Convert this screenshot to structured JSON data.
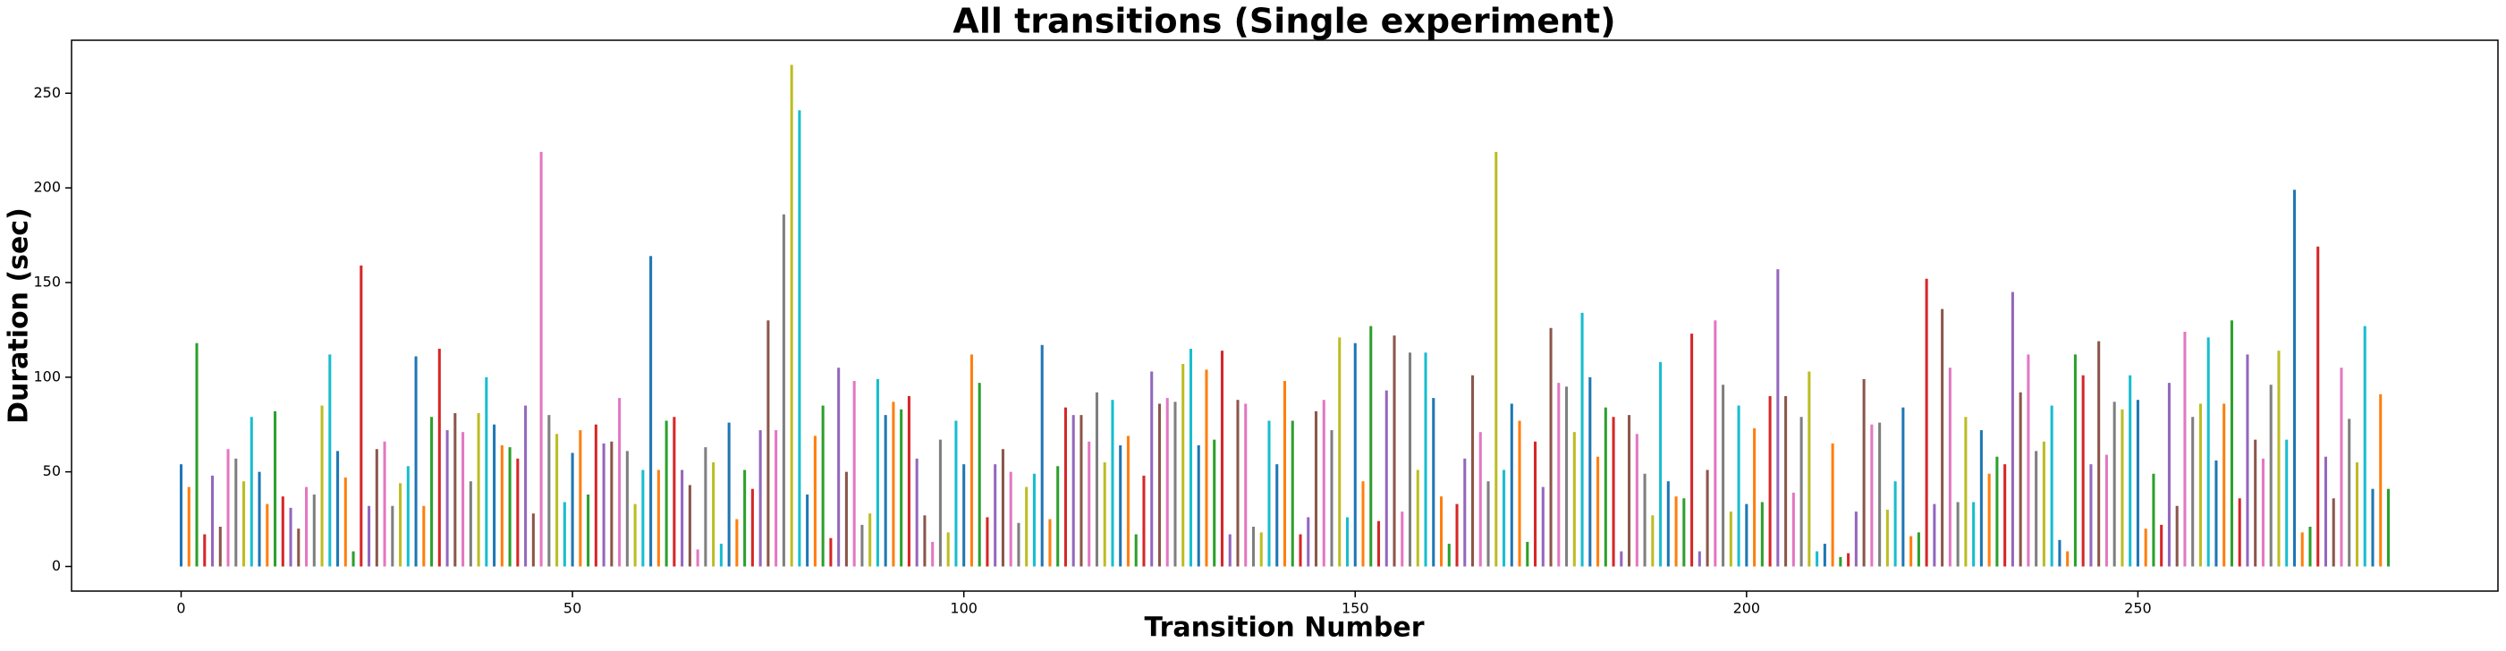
{
  "chart_data": {
    "type": "bar",
    "title": "All transitions (Single experiment)",
    "xlabel": "Transition Number",
    "ylabel": "Duration (sec)",
    "x": [
      0,
      1,
      2,
      3,
      4,
      5,
      6,
      7,
      8,
      9,
      10,
      11,
      12,
      13,
      14,
      15,
      16,
      17,
      18,
      19,
      20,
      21,
      22,
      23,
      24,
      25,
      26,
      27,
      28,
      29,
      30,
      31,
      32,
      33,
      34,
      35,
      36,
      37,
      38,
      39,
      40,
      41,
      42,
      43,
      44,
      45,
      46,
      47,
      48,
      49,
      50,
      51,
      52,
      53,
      54,
      55,
      56,
      57,
      58,
      59,
      60,
      61,
      62,
      63,
      64,
      65,
      66,
      67,
      68,
      69,
      70,
      71,
      72,
      73,
      74,
      75,
      76,
      77,
      78,
      79,
      80,
      81,
      82,
      83,
      84,
      85,
      86,
      87,
      88,
      89,
      90,
      91,
      92,
      93,
      94,
      95,
      96,
      97,
      98,
      99,
      100,
      101,
      102,
      103,
      104,
      105,
      106,
      107,
      108,
      109,
      110,
      111,
      112,
      113,
      114,
      115,
      116,
      117,
      118,
      119,
      120,
      121,
      122,
      123,
      124,
      125,
      126,
      127,
      128,
      129,
      130,
      131,
      132,
      133,
      134,
      135,
      136,
      137,
      138,
      139,
      140,
      141,
      142,
      143,
      144,
      145,
      146,
      147,
      148,
      149,
      150,
      151,
      152,
      153,
      154,
      155,
      156,
      157,
      158,
      159,
      160,
      161,
      162,
      163,
      164,
      165,
      166,
      167,
      168,
      169,
      170,
      171,
      172,
      173,
      174,
      175,
      176,
      177,
      178,
      179,
      180,
      181,
      182,
      183,
      184,
      185,
      186,
      187,
      188,
      189,
      190,
      191,
      192,
      193,
      194,
      195,
      196,
      197,
      198,
      199,
      200,
      201,
      202,
      203,
      204,
      205,
      206,
      207,
      208,
      209,
      210,
      211,
      212,
      213,
      214,
      215,
      216,
      217,
      218,
      219,
      220,
      221,
      222,
      223,
      224,
      225,
      226,
      227,
      228,
      229,
      230,
      231,
      232,
      233,
      234,
      235,
      236,
      237,
      238,
      239,
      240,
      241,
      242,
      243,
      244,
      245,
      246,
      247,
      248,
      249,
      250,
      251,
      252,
      253,
      254,
      255,
      256,
      257,
      258,
      259,
      260,
      261,
      262,
      263,
      264,
      265,
      266,
      267,
      268,
      269,
      270,
      271,
      272,
      273,
      274,
      275,
      276,
      277,
      278,
      279,
      280,
      281,
      282
    ],
    "values": [
      54,
      42,
      118,
      17,
      48,
      21,
      62,
      57,
      45,
      79,
      50,
      33,
      82,
      37,
      31,
      20,
      42,
      38,
      85,
      112,
      61,
      47,
      8,
      159,
      32,
      62,
      66,
      32,
      44,
      53,
      111,
      32,
      79,
      115,
      72,
      81,
      71,
      45,
      81,
      100,
      75,
      64,
      63,
      57,
      85,
      28,
      219,
      80,
      70,
      34,
      60,
      72,
      38,
      75,
      65,
      66,
      89,
      61,
      33,
      51,
      164,
      51,
      77,
      79,
      51,
      43,
      9,
      63,
      55,
      12,
      76,
      25,
      51,
      41,
      72,
      130,
      72,
      186,
      265,
      241,
      38,
      69,
      85,
      15,
      105,
      50,
      98,
      22,
      28,
      99,
      80,
      87,
      83,
      90,
      57,
      27,
      13,
      67,
      18,
      77,
      54,
      112,
      97,
      26,
      54,
      62,
      50,
      23,
      42,
      49,
      117,
      25,
      53,
      84,
      80,
      80,
      66,
      92,
      55,
      88,
      64,
      69,
      17,
      48,
      103,
      86,
      89,
      87,
      107,
      115,
      64,
      104,
      67,
      114,
      17,
      88,
      86,
      21,
      18,
      77,
      54,
      98,
      77,
      17,
      26,
      82,
      88,
      72,
      121,
      26,
      118,
      45,
      127,
      24,
      93,
      122,
      29,
      113,
      51,
      113,
      89,
      37,
      12,
      33,
      57,
      101,
      71,
      45,
      219,
      51,
      86,
      77,
      13,
      66,
      42,
      126,
      97,
      95,
      71,
      134,
      100,
      58,
      84,
      79,
      8,
      80,
      70,
      49,
      27,
      108,
      45,
      37,
      36,
      123,
      8,
      51,
      130,
      96,
      29,
      85,
      33,
      73,
      34,
      90,
      157,
      90,
      39,
      79,
      103,
      8,
      12,
      65,
      5,
      7,
      29,
      99,
      75,
      76,
      30,
      45,
      84,
      16,
      18,
      152,
      33,
      136,
      105,
      34,
      79,
      34,
      72,
      49,
      58,
      54,
      145,
      92,
      112,
      61,
      66,
      85,
      14,
      8,
      112,
      101,
      54,
      119,
      59,
      87,
      83,
      101,
      88,
      20,
      49,
      22,
      97,
      32,
      124,
      79,
      86,
      121,
      56,
      86,
      130,
      36,
      112,
      67,
      57,
      96,
      114,
      67,
      199,
      18,
      21,
      169,
      58,
      36,
      105,
      78,
      55,
      127,
      41,
      91,
      41
    ],
    "colors": [
      "#1f77b4",
      "#ff7f0e",
      "#2ca02c",
      "#d62728",
      "#9467bd",
      "#8c564b",
      "#e377c2",
      "#7f7f7f",
      "#bcbd22",
      "#17becf"
    ],
    "xlim": [
      -14,
      296
    ],
    "ylim": [
      -13,
      278
    ],
    "xticks": [
      0,
      50,
      100,
      150,
      200,
      250
    ],
    "yticks": [
      0,
      50,
      100,
      150,
      200,
      250
    ]
  }
}
